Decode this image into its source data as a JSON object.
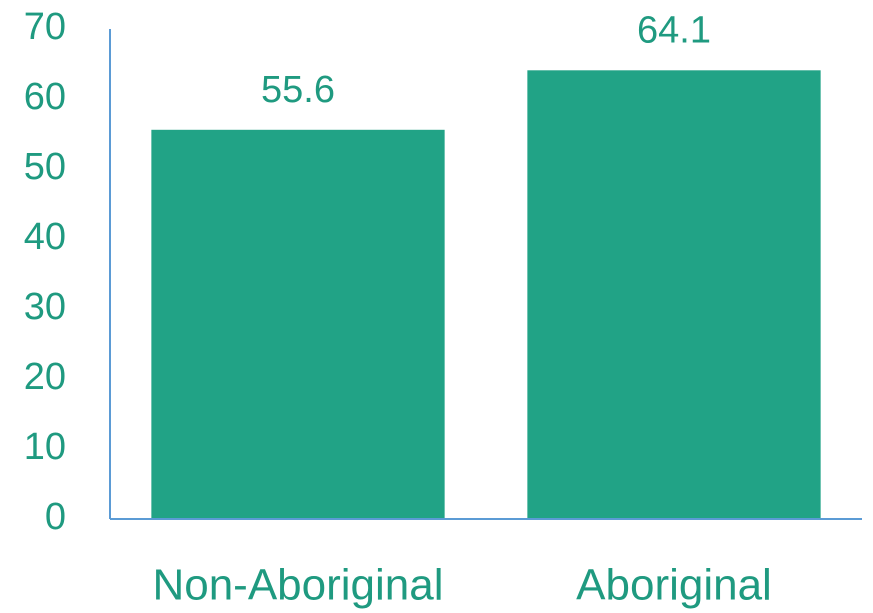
{
  "chart_data": {
    "type": "bar",
    "categories": [
      "Non-Aboriginal",
      "Aboriginal"
    ],
    "values": [
      55.6,
      64.1
    ],
    "color": "#21a386",
    "ylim": [
      0,
      70
    ],
    "yticks": [
      0,
      10,
      20,
      30,
      40,
      50,
      60,
      70
    ]
  }
}
